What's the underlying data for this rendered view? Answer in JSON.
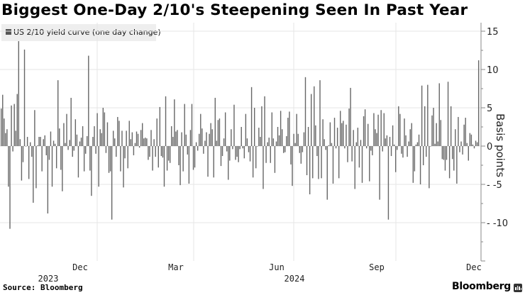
{
  "header": {
    "title": "Biggest One-Day 2/10's Steepening Seen In Past Year"
  },
  "legend": {
    "label": "US 2/10 yield curve (one day change)",
    "swatch_color": "#555555"
  },
  "footer": {
    "source": "Source: Bloomberg",
    "brand": "Bloomberg"
  },
  "axis": {
    "y_title": "Basis points",
    "y_ticks": [
      "15",
      "10",
      "5",
      "0",
      "-5",
      "-10"
    ],
    "x_month_labels": [
      "Dec",
      "Mar",
      "Jun",
      "Sep",
      "Dec"
    ],
    "x_year_labels": [
      "2023",
      "2024"
    ]
  },
  "chart_data": {
    "type": "bar",
    "title": "Biggest One-Day 2/10's Steepening Seen In Past Year",
    "xlabel": "",
    "ylabel": "Basis points",
    "ylim": [
      -14,
      16.5
    ],
    "y_ticks": [
      -10,
      -5,
      0,
      5,
      10,
      15
    ],
    "x_ticks": [
      "Dec 2023",
      "Mar 2024",
      "Jun 2024",
      "Sep 2024",
      "Dec 2024"
    ],
    "grid": true,
    "legend_position": "top-left",
    "bar_color": "#666666",
    "series": [
      {
        "name": "US 2/10 yield curve (one day change)",
        "values": [
          4.9,
          6.7,
          3.6,
          1.7,
          2.2,
          -5.3,
          -10.8,
          5.3,
          -0.7,
          5.5,
          2.0,
          6.8,
          13.7,
          0.9,
          -4.5,
          -2.1,
          12.6,
          0,
          1.2,
          -4.3,
          0.5,
          -1.4,
          -7.4,
          4.7,
          -5.5,
          0.1,
          1.2,
          1.2,
          -3.3,
          0.9,
          1.4,
          -1.2,
          -8.8,
          -1.8,
          1.9,
          -5.3,
          0.7,
          0.3,
          -2.9,
          8.6,
          2.3,
          -3.1,
          -5.9,
          3.0,
          0.4,
          4.2,
          -0.5,
          0.8,
          6.3,
          -1.4,
          -0.6,
          3.5,
          1.5,
          -4.1,
          0.6,
          1.1,
          2.6,
          -3.3,
          -1.0,
          1.3,
          11.8,
          -3.2,
          -6.5,
          1.2,
          2.6,
          -1.0,
          4.3,
          -5.3,
          2.2,
          1.7,
          5.0,
          4.4,
          -0.9,
          3.1,
          -3.5,
          -3.3,
          -9.6,
          2.0,
          1.0,
          -1.4,
          3.8,
          3.3,
          -3.3,
          2.0,
          -5.4,
          -1.6,
          2.0,
          -2.9,
          3.3,
          0.9,
          1.8,
          -1.2,
          0.4,
          1.9,
          1.6,
          -0.2,
          2.1,
          3.0,
          1.0,
          1.1,
          1.0,
          -1.8,
          -1.4,
          2.1,
          -3.2,
          0.9,
          -1.4,
          3.6,
          -2.8,
          5.1,
          -1.3,
          -1.5,
          -5.3,
          6.5,
          -3.2,
          -1.9,
          -2.2,
          2.6,
          1.2,
          6.1,
          1.9,
          2.1,
          -2.5,
          -5.1,
          1.8,
          -3.3,
          5.5,
          1.5,
          -1.1,
          -4.9,
          2.1,
          5.5,
          -3.1,
          -2.8,
          0.5,
          -0.6,
          1.6,
          4.2,
          2.3,
          -1.0,
          0.7,
          1.8,
          -4.0,
          1.6,
          3.0,
          2.2,
          -4.1,
          6.3,
          0.7,
          3.4,
          3.6,
          -2.6,
          -1.3,
          1.0,
          4.4,
          -0.7,
          -4.4,
          -1.9,
          2.2,
          -0.4,
          5.4,
          -1.8,
          -1.4,
          -2.1,
          -0.4,
          2.5,
          -0.3,
          -1.6,
          4.2,
          1.0,
          -0.8,
          -2.0,
          7.7,
          -4.1,
          5.0,
          -2.9,
          0,
          2.4,
          1.2,
          5.2,
          -5.6,
          6.5,
          -2.2,
          0.5,
          1.1,
          -2.2,
          4.4,
          1.0,
          -3.5,
          0.6,
          2.5,
          1.4,
          4.6,
          2.2,
          -0.9,
          -0.8,
          1.3,
          3.7,
          4.5,
          -2.4,
          -5.2,
          1.6,
          0.4,
          4.2,
          1.6,
          -0.9,
          -2.3,
          -0.8,
          1.8,
          9.0,
          -3.8,
          2.5,
          -6.3,
          6.8,
          -4.2,
          7.8,
          2.7,
          -1.3,
          -4.3,
          8.6,
          -4.2,
          3.5,
          0.9,
          -0.5,
          -7.0,
          0.1,
          3.1,
          0.4,
          -4.9,
          3.7,
          -0.3,
          2.4,
          -4.2,
          4.6,
          3.0,
          3.3,
          -0.3,
          2.8,
          -2.1,
          4.9,
          7.6,
          -2.0,
          2.1,
          -5.6,
          0.5,
          2.4,
          -2.8,
          0.8,
          -4.8,
          3.9,
          4.8,
          -0.3,
          2.9,
          -4.6,
          -0.6,
          -1.2,
          4.3,
          2.2,
          1.7,
          4.1,
          -7.0,
          4.7,
          -0.7,
          4.3,
          1.0,
          1.4,
          -9.6,
          1.2,
          -1.3,
          2.7,
          0.2,
          -3.4,
          -0.5,
          5.2,
          4.2,
          -1.0,
          -1.5,
          3.6,
          1.4,
          -1.4,
          0.6,
          2.2,
          3.0,
          -4.8,
          -3.3,
          0.2,
          0.5,
          1.5,
          -5.0,
          7.9,
          -2.5,
          5.2,
          -1.4,
          8.0,
          -5.5,
          0,
          4.0,
          5.0,
          0.3,
          3.0,
          0.6,
          8.2,
          3.4,
          -1.7,
          -1.8,
          -3.2,
          -1.8,
          8.4,
          -4.2,
          5.2,
          -1.7,
          -3.2,
          2.2,
          -4.9,
          3.8,
          -0.8,
          0.6,
          -1.1,
          2.8,
          3.7,
          0.4,
          -1.9,
          1.7,
          1.5,
          0.2,
          -0.3,
          0.7,
          0.5,
          11.2
        ]
      }
    ]
  }
}
